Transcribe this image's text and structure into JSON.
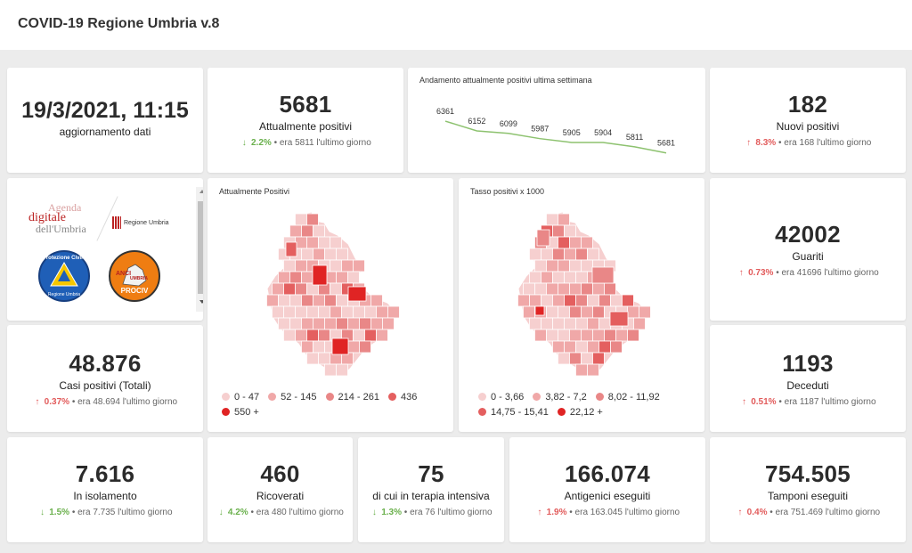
{
  "app": {
    "title": "COVID-19 Regione Umbria v.8"
  },
  "update": {
    "datetime": "19/3/2021, 11:15",
    "label": "aggiornamento dati"
  },
  "kpis": {
    "attualmente_positivi": {
      "value": "5681",
      "label": "Attualmente positivi",
      "pct": "2.2%",
      "trend": "down",
      "prev": "era 5811 l'ultimo giorno"
    },
    "nuovi_positivi": {
      "value": "182",
      "label": "Nuovi positivi",
      "pct": "8.3%",
      "trend": "up",
      "prev": "era 168 l'ultimo giorno"
    },
    "guariti": {
      "value": "42002",
      "label": "Guariti",
      "pct": "0.73%",
      "trend": "up",
      "prev": "era 41696 l'ultimo giorno"
    },
    "casi_totali": {
      "value": "48.876",
      "label": "Casi positivi (Totali)",
      "pct": "0.37%",
      "trend": "up",
      "prev": "era 48.694 l'ultimo giorno"
    },
    "deceduti": {
      "value": "1193",
      "label": "Deceduti",
      "pct": "0.51%",
      "trend": "up",
      "prev": "era 1187 l'ultimo giorno"
    },
    "isolamento": {
      "value": "7.616",
      "label": "In isolamento",
      "pct": "1.5%",
      "trend": "down",
      "prev": "era 7.735 l'ultimo giorno"
    },
    "ricoverati": {
      "value": "460",
      "label": "Ricoverati",
      "pct": "4.2%",
      "trend": "down",
      "prev": "era 480 l'ultimo giorno"
    },
    "terapia_intensiva": {
      "value": "75",
      "label": "di cui in terapia intensiva",
      "pct": "1.3%",
      "trend": "down",
      "prev": "era 76 l'ultimo giorno"
    },
    "antigenici": {
      "value": "166.074",
      "label": "Antigenici eseguiti",
      "pct": "1.9%",
      "trend": "up",
      "prev": "era 163.045 l'ultimo giorno"
    },
    "tamponi": {
      "value": "754.505",
      "label": "Tamponi eseguiti",
      "pct": "0.4%",
      "trend": "up",
      "prev": "era 751.469 l'ultimo giorno"
    }
  },
  "arrows": {
    "up": "↑",
    "down": "↓"
  },
  "logos": {
    "agenda_line1": "Agenda",
    "agenda_line2": "digitale",
    "agenda_line3": "dell'Umbria",
    "regione": "Regione Umbria",
    "protezione": "Protezione Civile",
    "protezione_sub": "Regione Umbria",
    "anci_1": "ANCI",
    "anci_2": "UMBRIA",
    "anci_3": "PROCIV"
  },
  "chart_data": {
    "type": "line",
    "title": "Andamento attualmente positivi ultima settimana",
    "values": [
      6361,
      6152,
      6099,
      5987,
      5905,
      5904,
      5811,
      5681
    ],
    "color": "#8dc26f"
  },
  "maps": {
    "positivi": {
      "title": "Attualmente Positivi",
      "legend": [
        {
          "label": "0 - 47",
          "color": "#f6cfcf"
        },
        {
          "label": "52 - 145",
          "color": "#f0a8a8"
        },
        {
          "label": "214 - 261",
          "color": "#e98787"
        },
        {
          "label": "436",
          "color": "#e45f5f"
        },
        {
          "label": "550 +",
          "color": "#e02424"
        }
      ]
    },
    "tasso": {
      "title": "Tasso positivi x 1000",
      "legend": [
        {
          "label": "0 - 3,66",
          "color": "#f6cfcf"
        },
        {
          "label": "3,82 - 7,2",
          "color": "#f0a8a8"
        },
        {
          "label": "8,02 - 11,92",
          "color": "#e98787"
        },
        {
          "label": "14,75 - 15,41",
          "color": "#e45f5f"
        },
        {
          "label": "22,12 +",
          "color": "#e02424"
        }
      ]
    }
  }
}
